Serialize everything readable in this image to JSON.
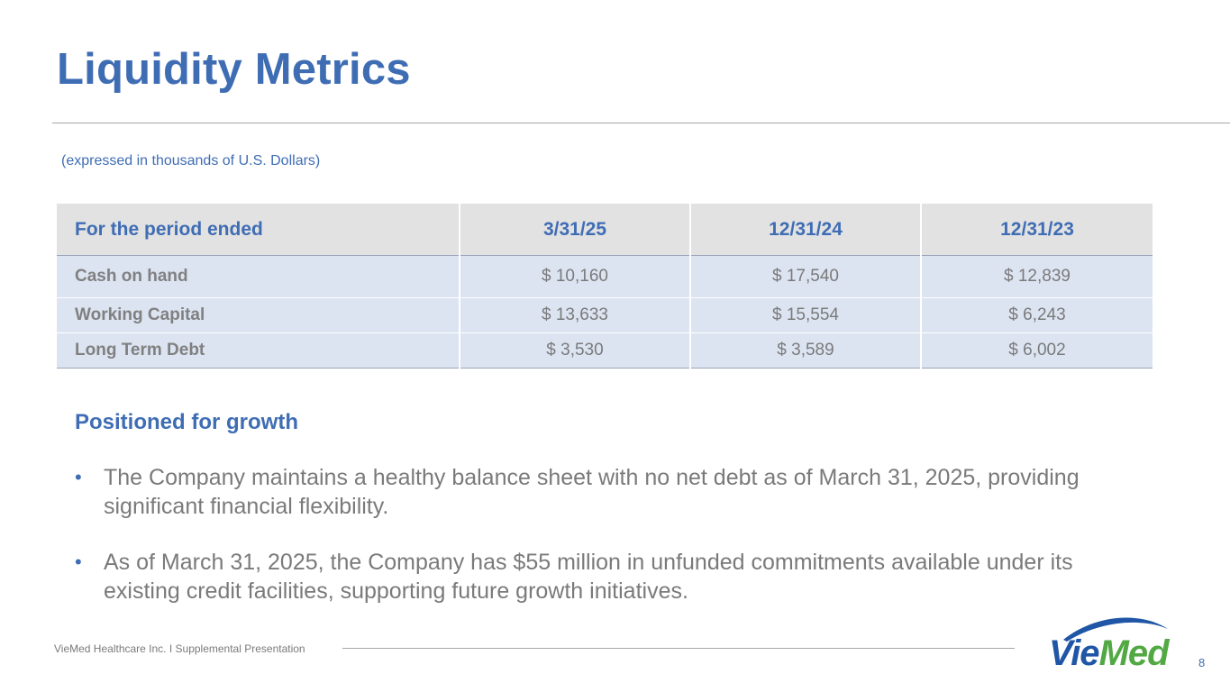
{
  "slide": {
    "title": "Liquidity Metrics",
    "subtitle": "(expressed in thousands of U.S. Dollars)",
    "page_number": "8"
  },
  "table": {
    "headers": [
      "For the period ended",
      "3/31/25",
      "12/31/24",
      "12/31/23"
    ],
    "rows": [
      {
        "label": "Cash on hand",
        "values": [
          "$ 10,160",
          "$ 17,540",
          "$ 12,839"
        ]
      },
      {
        "label": "Working Capital",
        "values": [
          "$ 13,633",
          "$ 15,554",
          "$ 6,243"
        ]
      },
      {
        "label": "Long Term Debt",
        "values": [
          "$ 3,530",
          "$ 3,589",
          "$ 6,002"
        ]
      }
    ]
  },
  "section": {
    "heading": "Positioned for growth",
    "bullets": [
      "The Company maintains a healthy balance sheet with no net debt as of March 31, 2025, providing significant financial flexibility.",
      "As of March 31, 2025, the Company has $55 million in unfunded commitments available under its existing credit facilities, supporting future growth initiatives."
    ],
    "bullet_glyph": "•"
  },
  "footer": {
    "text": "VieMed Healthcare Inc.  I  Supplemental Presentation"
  },
  "logo": {
    "name": "viemed-logo",
    "text_vie": "Vie",
    "text_med": "Med",
    "colors": {
      "blue": "#1f56a6",
      "green": "#52a944"
    }
  },
  "colors": {
    "accent": "#3f6db4",
    "body_text": "#7a7a7a",
    "header_fill": "#e2e2e2",
    "row_fill": "#dce4f2"
  }
}
